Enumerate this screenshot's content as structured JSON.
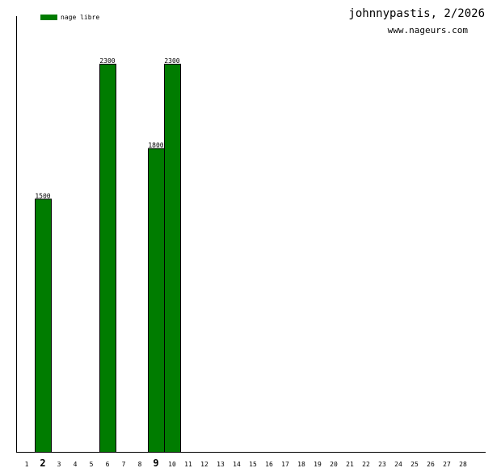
{
  "header": {
    "title": "johnnypastis, 2/2026",
    "site": "www.nageurs.com"
  },
  "chart_data": {
    "type": "bar",
    "categories": [
      "1",
      "2",
      "3",
      "4",
      "5",
      "6",
      "7",
      "8",
      "9",
      "10",
      "11",
      "12",
      "13",
      "14",
      "15",
      "16",
      "17",
      "18",
      "19",
      "20",
      "21",
      "22",
      "23",
      "24",
      "25",
      "26",
      "27",
      "28"
    ],
    "highlighted_categories": [
      "2",
      "9"
    ],
    "series": [
      {
        "name": "nage libre",
        "color": "#007c00",
        "values": [
          0,
          1500,
          0,
          0,
          0,
          2300,
          0,
          0,
          1800,
          2300,
          0,
          0,
          0,
          0,
          0,
          0,
          0,
          0,
          0,
          0,
          0,
          0,
          0,
          0,
          0,
          0,
          0,
          0
        ]
      }
    ],
    "ylim": [
      0,
      2300
    ],
    "grid": false,
    "legend_position": "top-left"
  }
}
